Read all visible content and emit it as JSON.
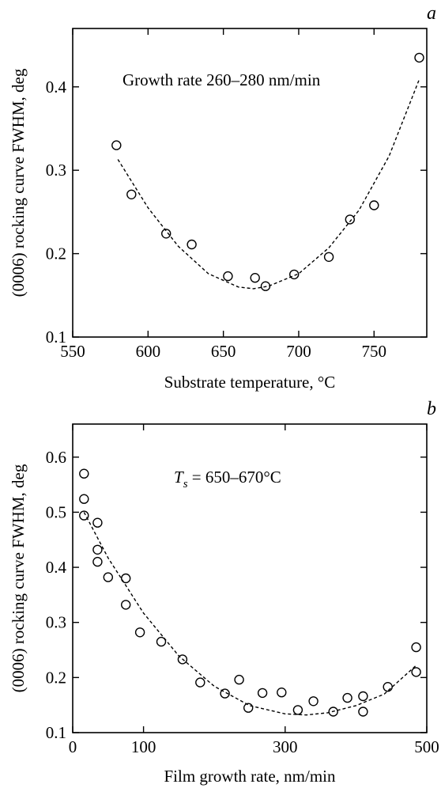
{
  "chart_data": [
    {
      "type": "scatter",
      "panel_label": "a",
      "annotation": "Growth rate 260–280 nm/min",
      "xlabel": "Substrate temperature, °C",
      "ylabel": "(0006) rocking curve FWHM, deg",
      "xlim": [
        550,
        785
      ],
      "ylim": [
        0.1,
        0.47
      ],
      "xticks": [
        550,
        600,
        650,
        700,
        750
      ],
      "yticks": [
        0.1,
        0.2,
        0.3,
        0.4
      ],
      "ytick_labels": [
        "0.1",
        "0.2",
        "0.3",
        "0.4"
      ],
      "grid": false,
      "series": [
        {
          "style": "open-circle",
          "x": [
            579,
            589,
            612,
            629,
            653,
            671,
            678,
            697,
            720,
            734,
            750,
            780
          ],
          "y": [
            0.33,
            0.271,
            0.224,
            0.211,
            0.173,
            0.171,
            0.161,
            0.175,
            0.196,
            0.241,
            0.258,
            0.435
          ]
        },
        {
          "style": "dashed-fit",
          "x": [
            580,
            600,
            620,
            640,
            660,
            670,
            680,
            700,
            720,
            740,
            760,
            780
          ],
          "y": [
            0.313,
            0.255,
            0.209,
            0.176,
            0.16,
            0.158,
            0.161,
            0.176,
            0.207,
            0.252,
            0.317,
            0.409
          ]
        }
      ]
    },
    {
      "type": "scatter",
      "panel_label": "b",
      "annotation_symbol": "T",
      "annotation_subscript": "s",
      "annotation_text": " =  650–670°C",
      "xlabel": "Film growth rate, nm/min",
      "ylabel": "(0006) rocking curve FWHM, deg",
      "xlim": [
        0,
        500
      ],
      "ylim": [
        0.1,
        0.66
      ],
      "xticks": [
        0,
        100,
        300,
        500
      ],
      "yticks": [
        0.1,
        0.2,
        0.3,
        0.4,
        0.5,
        0.6
      ],
      "ytick_labels": [
        "0.1",
        "0.2",
        "0.3",
        "0.4",
        "0.5",
        "0.6"
      ],
      "grid": false,
      "series": [
        {
          "style": "open-circle",
          "x": [
            16,
            16,
            16,
            35,
            35,
            35,
            50,
            75,
            75,
            95,
            125,
            155,
            180,
            215,
            235,
            248,
            268,
            295,
            318,
            340,
            368,
            388,
            410,
            410,
            445,
            485,
            485
          ],
          "y": [
            0.57,
            0.524,
            0.494,
            0.481,
            0.432,
            0.41,
            0.382,
            0.38,
            0.332,
            0.282,
            0.265,
            0.233,
            0.191,
            0.171,
            0.196,
            0.145,
            0.172,
            0.173,
            0.141,
            0.157,
            0.138,
            0.163,
            0.166,
            0.138,
            0.183,
            0.255,
            0.21
          ]
        },
        {
          "style": "dashed-fit",
          "x": [
            16,
            50,
            100,
            150,
            200,
            250,
            300,
            330,
            360,
            400,
            440,
            485
          ],
          "y": [
            0.5,
            0.417,
            0.317,
            0.239,
            0.184,
            0.149,
            0.134,
            0.132,
            0.136,
            0.149,
            0.17,
            0.222
          ]
        }
      ]
    }
  ]
}
